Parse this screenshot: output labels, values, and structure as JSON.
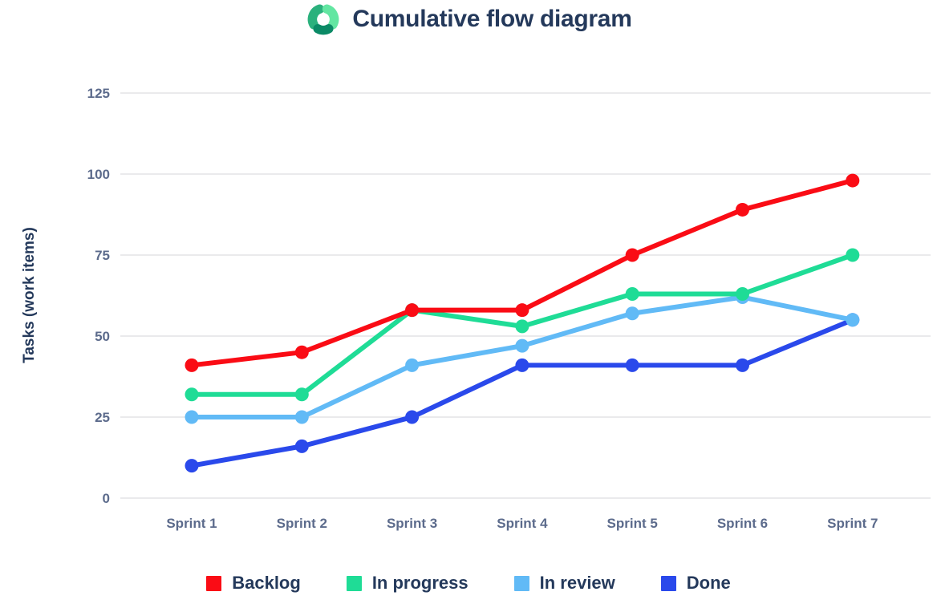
{
  "header": {
    "title": "Cumulative flow diagram",
    "logo_icon": "cycle-arrows-icon",
    "logo_colors": [
      "#2BB17D",
      "#63E6A2",
      "#0B8A66"
    ]
  },
  "colors": {
    "title_text": "#24395B",
    "axis_text": "#5C6B8C",
    "gridline": "#E3E3E6",
    "background": "#FFFFFF"
  },
  "chart_data": {
    "type": "line",
    "title": "Cumulative flow diagram",
    "xlabel": "",
    "ylabel": "Tasks (work items)",
    "categories": [
      "Sprint 1",
      "Sprint 2",
      "Sprint 3",
      "Sprint 4",
      "Sprint 5",
      "Sprint 6",
      "Sprint 7"
    ],
    "series": [
      {
        "name": "Backlog",
        "color": "#FA0C15",
        "values": [
          41,
          45,
          58,
          58,
          75,
          89,
          98
        ]
      },
      {
        "name": "In progress",
        "color": "#1FDC96",
        "values": [
          32,
          32,
          58,
          53,
          63,
          63,
          75
        ]
      },
      {
        "name": "In review",
        "color": "#61BAF6",
        "values": [
          25,
          25,
          41,
          47,
          57,
          62,
          55
        ]
      },
      {
        "name": "Done",
        "color": "#2A49EB",
        "values": [
          10,
          16,
          25,
          41,
          41,
          41,
          55
        ]
      }
    ],
    "ylim": [
      0,
      125
    ],
    "yticks": [
      0,
      25,
      50,
      75,
      100,
      125
    ],
    "grid": "horizontal",
    "legend_position": "bottom",
    "marker": "circle"
  }
}
